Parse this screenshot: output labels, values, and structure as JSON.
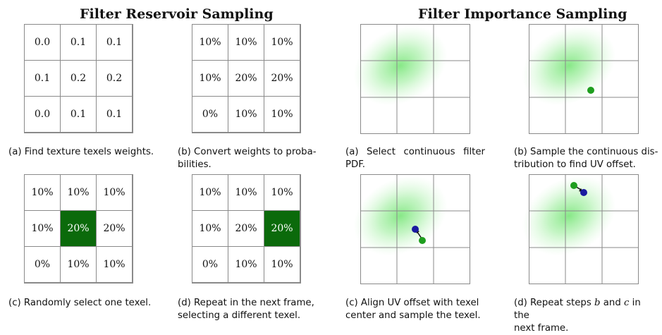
{
  "titles": {
    "left": "Filter Reservoir Sampling",
    "right": "Filter Importance Sampling"
  },
  "reservoir": {
    "a": {
      "cells": [
        "0.0",
        "0.1",
        "0.1",
        "0.1",
        "0.2",
        "0.2",
        "0.0",
        "0.1",
        "0.1"
      ],
      "caption": "(a) Find texture texels weights."
    },
    "b": {
      "cells": [
        "10%",
        "10%",
        "10%",
        "10%",
        "20%",
        "20%",
        "0%",
        "10%",
        "10%"
      ],
      "caption_line1": "(b) Convert weights to proba-",
      "caption_line2": "bilities."
    },
    "c": {
      "cells": [
        "10%",
        "10%",
        "10%",
        "10%",
        "20%",
        "20%",
        "0%",
        "10%",
        "10%"
      ],
      "selected_index": 4,
      "caption": "(c) Randomly select one texel."
    },
    "d": {
      "cells": [
        "10%",
        "10%",
        "10%",
        "10%",
        "20%",
        "20%",
        "0%",
        "10%",
        "10%"
      ],
      "selected_index": 5,
      "caption_line1": "(d) Repeat in the next frame,",
      "caption_line2": "selecting a different texel."
    }
  },
  "importance": {
    "a": {
      "caption_line1": "(a) Select continuous filter",
      "caption_line2": "PDF."
    },
    "b": {
      "caption_line1": "(b) Sample the continuous dis-",
      "caption_line2": "tribution to find UV offset."
    },
    "c": {
      "caption_line1": "(c) Align UV offset with texel",
      "caption_line2": "center and sample the texel."
    },
    "d": {
      "caption_line1_pre": "(d) Repeat steps ",
      "caption_b": "b",
      "caption_mid": " and ",
      "caption_c": "c",
      "caption_line1_post": " in the",
      "caption_line2": "next frame."
    }
  },
  "colors": {
    "selected_fill": "#0b6a0b",
    "pdf_green": "#5fe05f",
    "sample_dot": "#1f9e1f",
    "center_dot": "#1a1aa0"
  }
}
